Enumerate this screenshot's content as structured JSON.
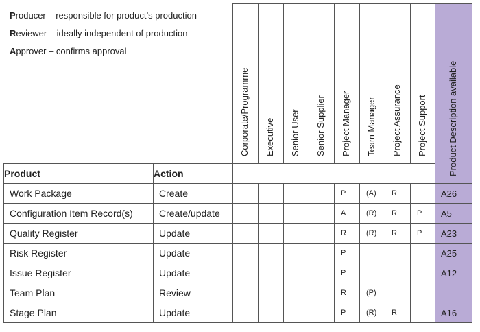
{
  "legend": [
    {
      "initial": "P",
      "rest": "roducer – responsible for product’s production"
    },
    {
      "initial": "R",
      "rest": "eviewer – ideally independent of production"
    },
    {
      "initial": "A",
      "rest": "pprover – confirms approval"
    }
  ],
  "roles": [
    "Corporate/Programme",
    "Executive",
    "Senior User",
    "Senior Supplier",
    "Project Manager",
    "Team Manager",
    "Project Assurance",
    "Project Support"
  ],
  "description_header": "Product Description available",
  "columns": {
    "product": "Product",
    "action": "Action"
  },
  "rows": [
    {
      "product": "Work Package",
      "action": "Create",
      "marks": [
        "",
        "",
        "",
        "",
        "P",
        "(A)",
        "R",
        ""
      ],
      "ref": "A26"
    },
    {
      "product": "Configuration Item Record(s)",
      "action": "Create/update",
      "marks": [
        "",
        "",
        "",
        "",
        "A",
        "(R)",
        "R",
        "P"
      ],
      "ref": "A5"
    },
    {
      "product": "Quality Register",
      "action": "Update",
      "marks": [
        "",
        "",
        "",
        "",
        "R",
        "(R)",
        "R",
        "P"
      ],
      "ref": "A23"
    },
    {
      "product": "Risk Register",
      "action": "Update",
      "marks": [
        "",
        "",
        "",
        "",
        "P",
        "",
        "",
        ""
      ],
      "ref": "A25"
    },
    {
      "product": "Issue Register",
      "action": "Update",
      "marks": [
        "",
        "",
        "",
        "",
        "P",
        "",
        "",
        ""
      ],
      "ref": "A12"
    },
    {
      "product": "Team Plan",
      "action": "Review",
      "marks": [
        "",
        "",
        "",
        "",
        "R",
        "(P)",
        "",
        ""
      ],
      "ref": ""
    },
    {
      "product": "Stage Plan",
      "action": "Update",
      "marks": [
        "",
        "",
        "",
        "",
        "P",
        "(R)",
        "R",
        ""
      ],
      "ref": "A16"
    }
  ]
}
